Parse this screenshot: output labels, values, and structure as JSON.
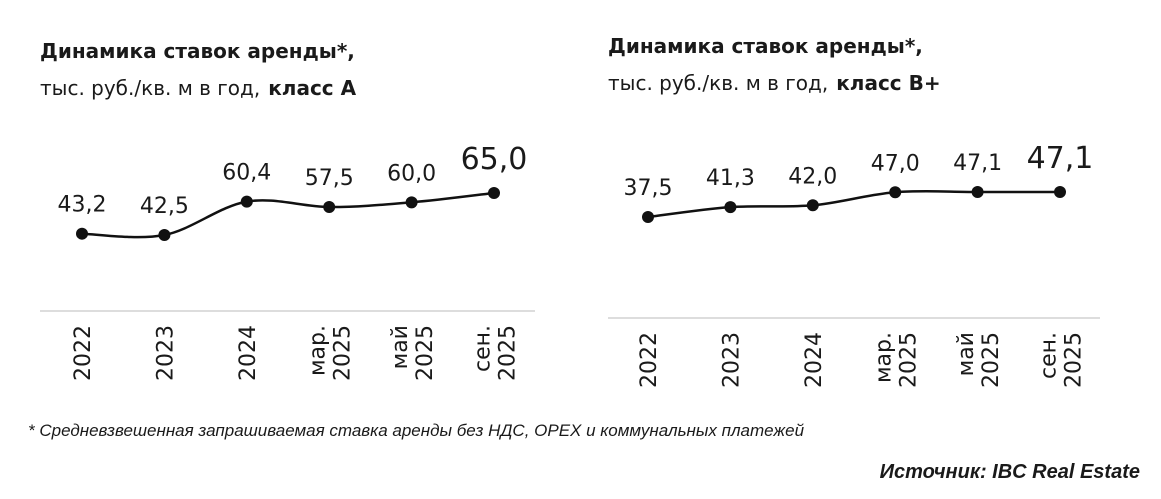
{
  "chart_data": [
    {
      "type": "line",
      "title": "Динамика ставок аренды*,",
      "subtitle": "тыс. руб./кв. м в год,",
      "class_label": "класс А",
      "categories": [
        [
          "2022"
        ],
        [
          "2023"
        ],
        [
          "2024"
        ],
        [
          "мар.",
          "2025"
        ],
        [
          "май",
          "2025"
        ],
        [
          "сен.",
          "2025"
        ]
      ],
      "values": [
        43.2,
        42.5,
        60.4,
        57.5,
        60.0,
        65.0
      ],
      "value_labels": [
        "43,2",
        "42,5",
        "60,4",
        "57,5",
        "60,0",
        "65,0"
      ],
      "color": "#111111"
    },
    {
      "type": "line",
      "title": "Динамика ставок аренды*,",
      "subtitle": "тыс. руб./кв. м в год,",
      "class_label": "класс В+",
      "categories": [
        [
          "2022"
        ],
        [
          "2023"
        ],
        [
          "2024"
        ],
        [
          "мар.",
          "2025"
        ],
        [
          "май",
          "2025"
        ],
        [
          "сен.",
          "2025"
        ]
      ],
      "values": [
        37.5,
        41.3,
        42.0,
        47.0,
        47.1,
        47.1
      ],
      "value_labels": [
        "37,5",
        "41,3",
        "42,0",
        "47,0",
        "47,1",
        "47,1"
      ],
      "color": "#111111"
    }
  ],
  "footnote": "* Средневзвешенная запрашиваемая ставка аренды без НДС, OPEX и коммунальных платежей",
  "source": "Источник: IBC Real Estate"
}
